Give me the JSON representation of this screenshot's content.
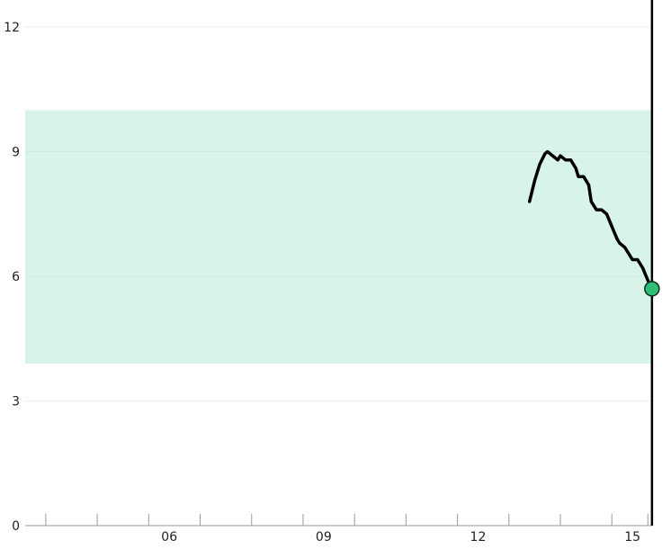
{
  "chart_data": {
    "type": "line",
    "x_unit": "hour",
    "xlim": [
      3.2,
      15.4
    ],
    "ylim": [
      0,
      12
    ],
    "x_ticks": [
      {
        "value": 6,
        "label": "06"
      },
      {
        "value": 9,
        "label": "09"
      },
      {
        "value": 12,
        "label": "12"
      },
      {
        "value": 15,
        "label": "15"
      }
    ],
    "x_minor_ticks": [
      3.6,
      4.6,
      5.6,
      6.6,
      7.6,
      8.6,
      9.6,
      10.6,
      11.6,
      12.6,
      13.6,
      14.6,
      15.3
    ],
    "y_ticks": [
      {
        "value": 0,
        "label": "0"
      },
      {
        "value": 3,
        "label": "3"
      },
      {
        "value": 6,
        "label": "6"
      },
      {
        "value": 9,
        "label": "9"
      },
      {
        "value": 12,
        "label": "12"
      }
    ],
    "grid": true,
    "target_range": {
      "low": 3.9,
      "high": 10.0,
      "color": "#d8f3e8"
    },
    "series": [
      {
        "color": "#000000",
        "points": [
          {
            "x": 13.0,
            "y": 7.8
          },
          {
            "x": 13.1,
            "y": 8.3
          },
          {
            "x": 13.2,
            "y": 8.7
          },
          {
            "x": 13.3,
            "y": 8.95
          },
          {
            "x": 13.35,
            "y": 9.0
          },
          {
            "x": 13.45,
            "y": 8.9
          },
          {
            "x": 13.55,
            "y": 8.8
          },
          {
            "x": 13.6,
            "y": 8.9
          },
          {
            "x": 13.7,
            "y": 8.8
          },
          {
            "x": 13.8,
            "y": 8.8
          },
          {
            "x": 13.9,
            "y": 8.6
          },
          {
            "x": 13.95,
            "y": 8.4
          },
          {
            "x": 14.05,
            "y": 8.4
          },
          {
            "x": 14.15,
            "y": 8.2
          },
          {
            "x": 14.2,
            "y": 7.8
          },
          {
            "x": 14.3,
            "y": 7.6
          },
          {
            "x": 14.4,
            "y": 7.6
          },
          {
            "x": 14.5,
            "y": 7.5
          },
          {
            "x": 14.6,
            "y": 7.2
          },
          {
            "x": 14.7,
            "y": 6.9
          },
          {
            "x": 14.75,
            "y": 6.8
          },
          {
            "x": 14.85,
            "y": 6.7
          },
          {
            "x": 14.9,
            "y": 6.6
          },
          {
            "x": 15.0,
            "y": 6.4
          },
          {
            "x": 15.1,
            "y": 6.4
          },
          {
            "x": 15.2,
            "y": 6.2
          },
          {
            "x": 15.3,
            "y": 5.9
          },
          {
            "x": 15.38,
            "y": 5.7
          }
        ]
      }
    ],
    "current_point": {
      "x": 15.38,
      "y": 5.7,
      "color": "#2dbe78"
    },
    "now_x": 15.38
  }
}
